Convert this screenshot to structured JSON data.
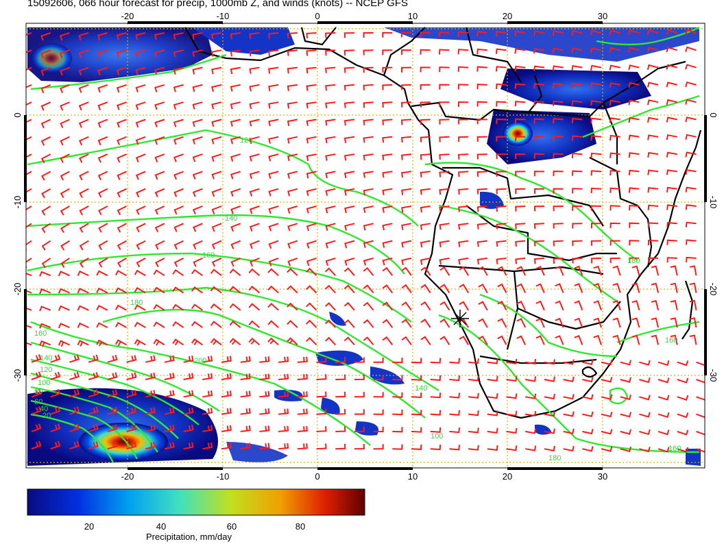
{
  "title": "15092606, 066 hour forecast for precip, 1000mb Z, and winds (knots) -- NCEP GFS",
  "axes": {
    "lon_ticks": [
      "-20",
      "-10",
      "0",
      "10",
      "20",
      "30"
    ],
    "lat_ticks": [
      "0",
      "-10",
      "-20",
      "-30"
    ],
    "lon_range": [
      -30,
      40
    ],
    "lat_range": [
      -40,
      10
    ]
  },
  "contour_labels": [
    "120",
    "140",
    "160",
    "180",
    "200",
    "160",
    "140",
    "120",
    "100",
    "80",
    "60",
    "40",
    "20",
    "180",
    "160",
    "140",
    "100",
    "180",
    "160"
  ],
  "colorbar": {
    "title": "Precipitation, mm/day",
    "ticks": [
      "20",
      "40",
      "60",
      "80"
    ],
    "range": [
      0,
      100
    ],
    "colors": [
      "#0a0a80",
      "#0030e0",
      "#00a0f0",
      "#40e0c0",
      "#c0e020",
      "#f0a000",
      "#e02000",
      "#600000"
    ]
  },
  "colors": {
    "contour": "#2ee82e",
    "wind_barb": "#ff1a1a",
    "grid": "#d8b400",
    "coast": "#000000"
  },
  "icons": {
    "station_marker": "asterisk-marker-icon"
  }
}
